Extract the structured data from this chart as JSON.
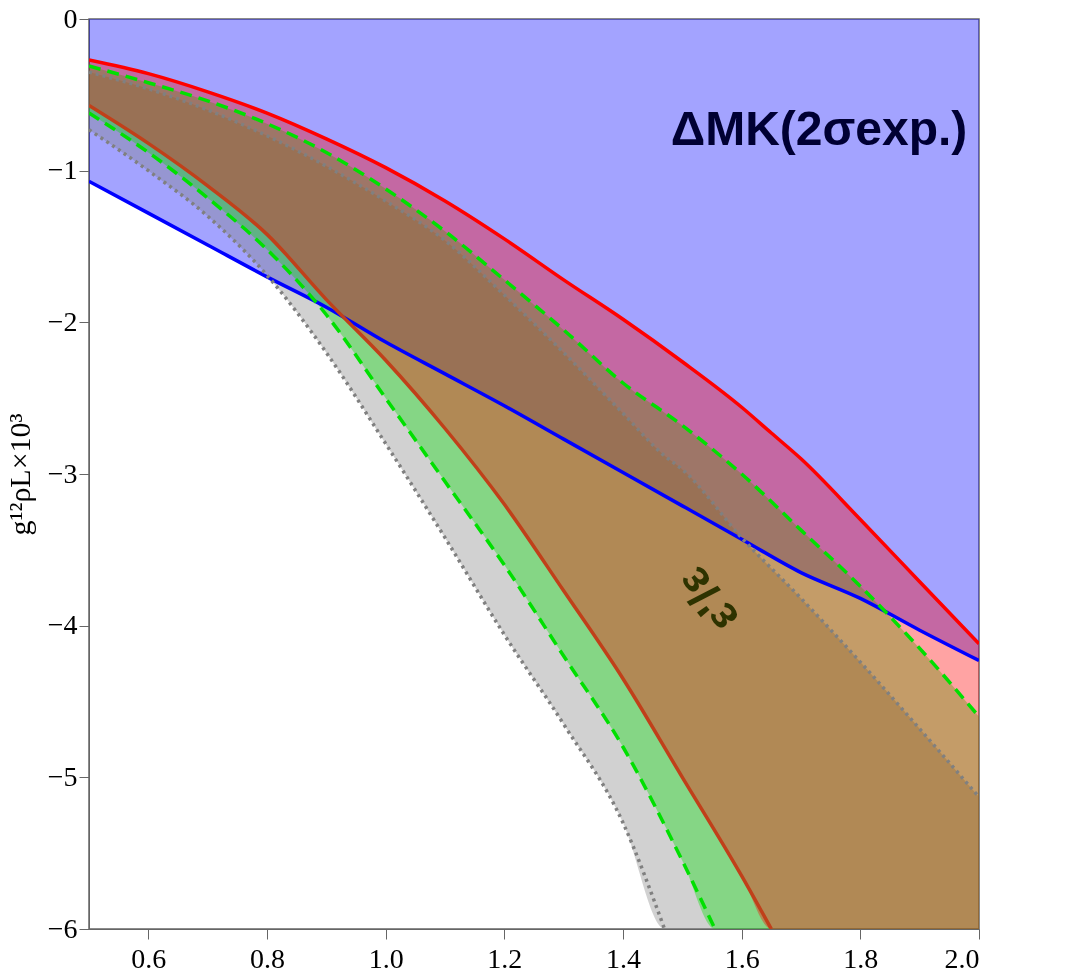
{
  "chart_data": {
    "type": "line",
    "ylabel": "g¹²ρL×10³",
    "xlim": [
      0.5,
      2.0
    ],
    "ylim": [
      -6,
      0
    ],
    "xticks": [
      0.6,
      0.8,
      {
        "value": 1.0,
        "label": "1.0"
      },
      1.2,
      1.4,
      1.6,
      1.8,
      {
        "value": 2.0,
        "label": "2.0"
      }
    ],
    "yticks": [
      -6,
      -5,
      -4,
      -3,
      -2,
      -1,
      0
    ],
    "grid": false,
    "series": [
      {
        "color": "#0000ff",
        "line_style": "solid",
        "x": [
          0.5,
          0.6,
          0.7,
          0.8,
          0.9,
          1.0,
          1.1,
          1.2,
          1.3,
          1.4,
          1.5,
          1.6,
          1.7,
          1.8,
          1.9,
          2.0
        ],
        "values": [
          -1.07,
          -1.28,
          -1.49,
          -1.7,
          -1.9,
          -2.13,
          -2.34,
          -2.55,
          -2.77,
          -2.99,
          -3.21,
          -3.43,
          -3.65,
          -3.82,
          -4.03,
          -4.23
        ],
        "lower": [
          -1.07,
          -1.28,
          -1.49,
          -1.7,
          -1.9,
          -2.13,
          -2.34,
          -2.55,
          -2.77,
          -2.99,
          -3.21,
          -3.43,
          -3.65,
          -3.82,
          -4.03,
          -4.23
        ],
        "upper": [
          0,
          0,
          0,
          0,
          0,
          0,
          0,
          0,
          0,
          0,
          0,
          0,
          0,
          0,
          0,
          0
        ]
      },
      {
        "color": "#808080",
        "line_style": "dotted",
        "x": [
          0.5,
          0.6,
          0.7,
          0.8,
          0.9,
          1.0,
          1.1,
          1.2,
          1.3,
          1.4,
          1.47,
          1.5,
          1.6,
          1.7,
          1.8,
          1.9,
          2.0
        ],
        "values": [
          -0.35,
          -0.46,
          -0.6,
          -0.77,
          -0.97,
          -1.2,
          -1.46,
          -1.82,
          -2.2,
          -2.6,
          -2.88,
          -2.97,
          -3.42,
          -3.82,
          -4.24,
          -4.68,
          -5.13
        ],
        "lower": [
          -0.73,
          -1.0,
          -1.3,
          -1.69,
          -2.2,
          -2.8,
          -3.42,
          -4.06,
          -4.65,
          -5.3,
          -6,
          -6,
          -6,
          -6,
          -6,
          -6,
          -6
        ],
        "upper": [
          -0.35,
          -0.46,
          -0.6,
          -0.77,
          -0.97,
          -1.2,
          -1.46,
          -1.82,
          -2.2,
          -2.6,
          -2.88,
          -2.97,
          -3.42,
          -3.82,
          -4.24,
          -4.68,
          -5.13
        ]
      },
      {
        "color": "#00e000",
        "line_style": "dashed",
        "x": [
          0.5,
          0.6,
          0.7,
          0.8,
          0.9,
          1.0,
          1.1,
          1.2,
          1.3,
          1.4,
          1.5,
          1.555,
          1.6,
          1.7,
          1.8,
          1.9,
          2.0
        ],
        "values": [
          -0.31,
          -0.42,
          -0.54,
          -0.69,
          -0.88,
          -1.12,
          -1.4,
          -1.72,
          -2.05,
          -2.4,
          -2.68,
          -2.85,
          -3.0,
          -3.37,
          -3.74,
          -4.15,
          -4.6
        ],
        "lower": [
          -0.62,
          -0.88,
          -1.18,
          -1.52,
          -1.95,
          -2.5,
          -3.05,
          -3.6,
          -4.2,
          -4.8,
          -5.55,
          -6,
          -6,
          -6,
          -6,
          -6,
          -6
        ],
        "upper": [
          -0.31,
          -0.42,
          -0.54,
          -0.69,
          -0.88,
          -1.12,
          -1.4,
          -1.72,
          -2.05,
          -2.4,
          -2.68,
          -2.85,
          -3.0,
          -3.37,
          -3.74,
          -4.15,
          -4.6
        ]
      },
      {
        "color": "#ff0000",
        "line_style": "solid",
        "x": [
          0.5,
          0.6,
          0.7,
          0.8,
          0.9,
          1.0,
          1.1,
          1.2,
          1.3,
          1.4,
          1.5,
          1.6,
          1.65,
          1.7,
          1.8,
          1.9,
          2.0
        ],
        "values": [
          -0.27,
          -0.36,
          -0.48,
          -0.62,
          -0.79,
          -0.98,
          -1.2,
          -1.45,
          -1.72,
          -1.98,
          -2.26,
          -2.56,
          -2.73,
          -2.9,
          -3.3,
          -3.71,
          -4.12
        ],
        "lower": [
          -0.57,
          -0.82,
          -1.1,
          -1.42,
          -1.85,
          -2.25,
          -2.7,
          -3.2,
          -3.77,
          -4.35,
          -5.0,
          -5.65,
          -6,
          -6,
          -6,
          -6,
          -6
        ],
        "upper": [
          -0.27,
          -0.36,
          -0.48,
          -0.62,
          -0.79,
          -0.98,
          -1.2,
          -1.45,
          -1.72,
          -1.98,
          -2.26,
          -2.56,
          -2.73,
          -2.9,
          -3.3,
          -3.71,
          -4.12
        ]
      },
      {
        "color": "#808080",
        "line_style": "dotted",
        "x": [
          0.5,
          0.6,
          0.7,
          0.8,
          0.9,
          1.0,
          1.1,
          1.2,
          1.3,
          1.4,
          1.47
        ],
        "values": [
          -0.73,
          -1.0,
          -1.3,
          -1.69,
          -2.2,
          -2.8,
          -3.42,
          -4.06,
          -4.65,
          -5.3,
          -6
        ]
      },
      {
        "color": "#00e000",
        "line_style": "dashed",
        "x": [
          0.5,
          0.6,
          0.7,
          0.8,
          0.9,
          1.0,
          1.1,
          1.2,
          1.3,
          1.4,
          1.5,
          1.555
        ],
        "values": [
          -0.62,
          -0.88,
          -1.18,
          -1.52,
          -1.95,
          -2.5,
          -3.05,
          -3.6,
          -4.2,
          -4.8,
          -5.55,
          -6
        ]
      },
      {
        "color": "#c0401a",
        "line_style": "solid",
        "x": [
          0.5,
          0.6,
          0.7,
          0.8,
          0.9,
          1.0,
          1.1,
          1.2,
          1.3,
          1.4,
          1.5,
          1.6,
          1.65
        ],
        "values": [
          -0.57,
          -0.82,
          -1.1,
          -1.42,
          -1.85,
          -2.25,
          -2.7,
          -3.2,
          -3.77,
          -4.35,
          -5.0,
          -5.65,
          -6
        ]
      }
    ],
    "annotations": [
      "ΔMK(2σexp.)",
      "ε'/ε"
    ]
  }
}
